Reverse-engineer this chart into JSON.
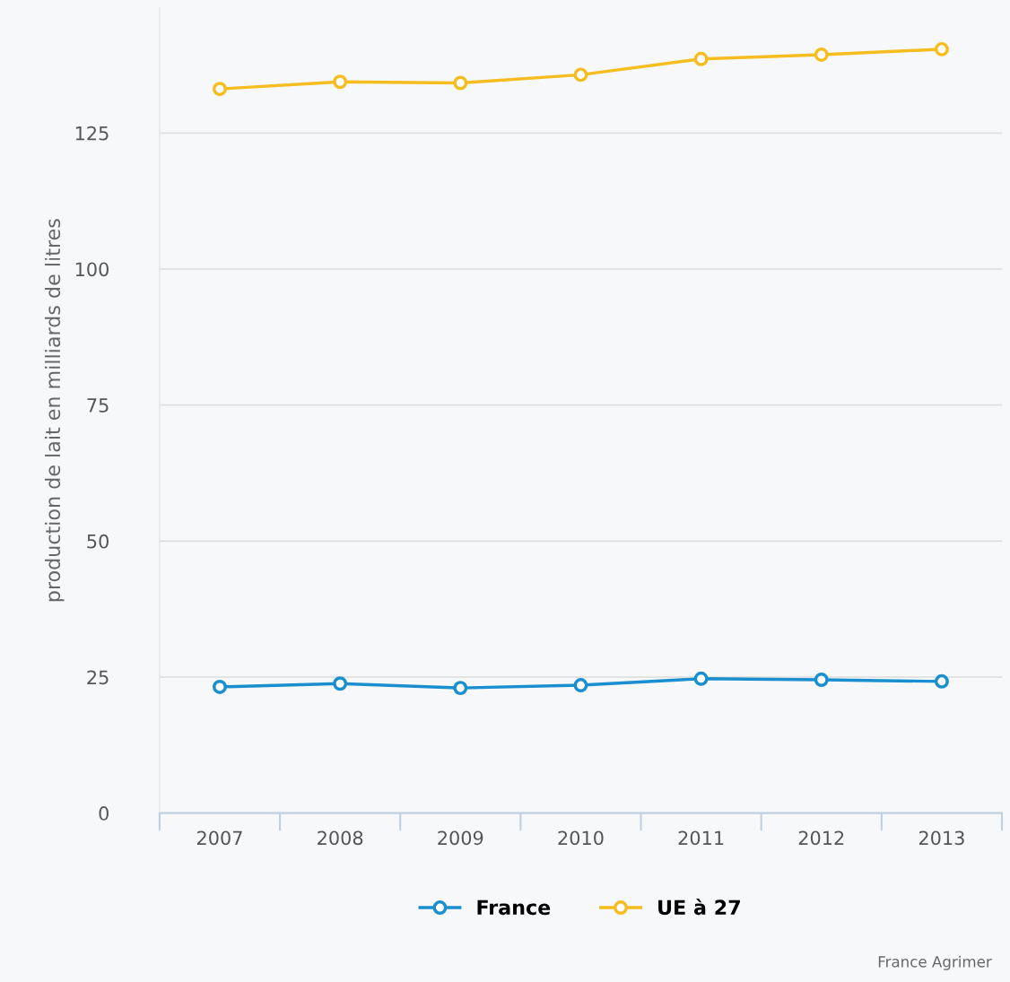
{
  "chart_data": {
    "type": "line",
    "ylabel": "production de lait en milliards de litres",
    "categories": [
      "2007",
      "2008",
      "2009",
      "2010",
      "2011",
      "2012",
      "2013"
    ],
    "series": [
      {
        "name": "France",
        "color": "#1a8fd0",
        "values": [
          23.2,
          23.8,
          23.0,
          23.5,
          24.7,
          24.5,
          24.2
        ]
      },
      {
        "name": "UE à 27",
        "color": "#f5bd1f",
        "values": [
          133.1,
          134.4,
          134.2,
          135.7,
          138.6,
          139.4,
          140.4
        ]
      }
    ],
    "ylim": [
      0,
      148
    ],
    "yticks": [
      0,
      25,
      50,
      75,
      100,
      125
    ],
    "grid": "y",
    "legend": "bottom",
    "marker": "circle",
    "line_style": "solid",
    "annotations": [
      "France Agrimer"
    ]
  }
}
